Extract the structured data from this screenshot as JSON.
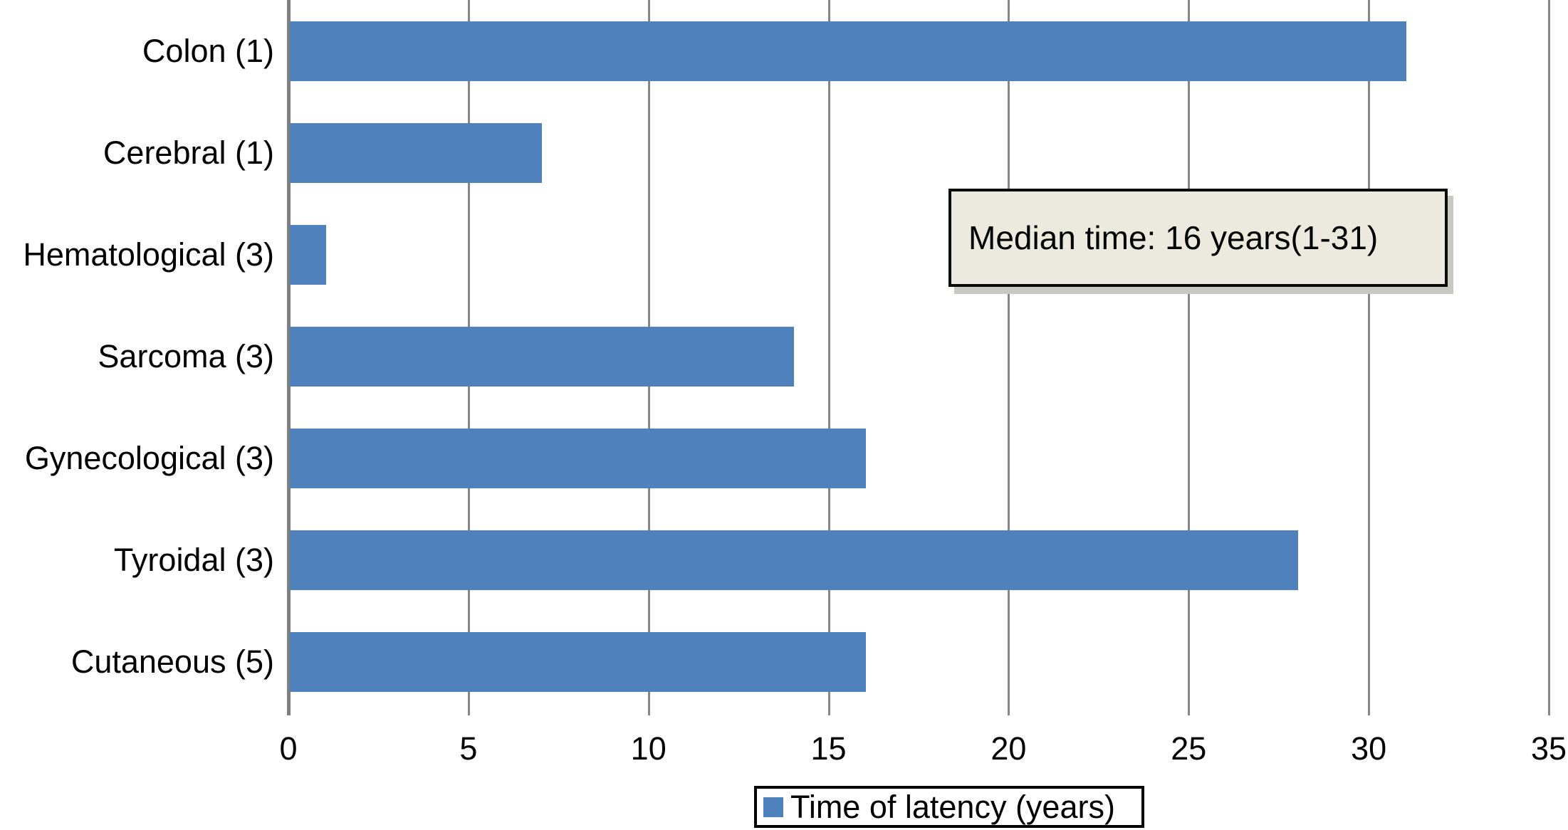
{
  "chart_data": {
    "type": "bar",
    "orientation": "horizontal",
    "title": "",
    "xlabel": "",
    "ylabel": "",
    "categories": [
      "Colon (1)",
      "Cerebral (1)",
      "Hematological (3)",
      "Sarcoma (3)",
      "Gynecological (3)",
      "Tyroidal (3)",
      "Cutaneous (5)"
    ],
    "values": [
      31,
      7,
      1,
      14,
      16,
      28,
      16
    ],
    "series_name": "Time of latency (years)",
    "xlim": [
      0,
      35
    ],
    "xticks": [
      0,
      5,
      10,
      15,
      20,
      25,
      30,
      35
    ],
    "grid": true,
    "legend_position": "bottom-center",
    "annotation": "Median time: 16 years(1-31)",
    "colors": {
      "bar": "#4f81bd",
      "gridline": "#878787",
      "axis_line": "#7f7f7f",
      "annotation_bg": "#eceadf",
      "annotation_border": "#0b0b0b",
      "legend_border": "#000000",
      "text": "#000000"
    }
  },
  "annotation": {
    "text": "Median time: 16 years(1-31)"
  },
  "legend": {
    "label": "Time of latency (years)"
  }
}
